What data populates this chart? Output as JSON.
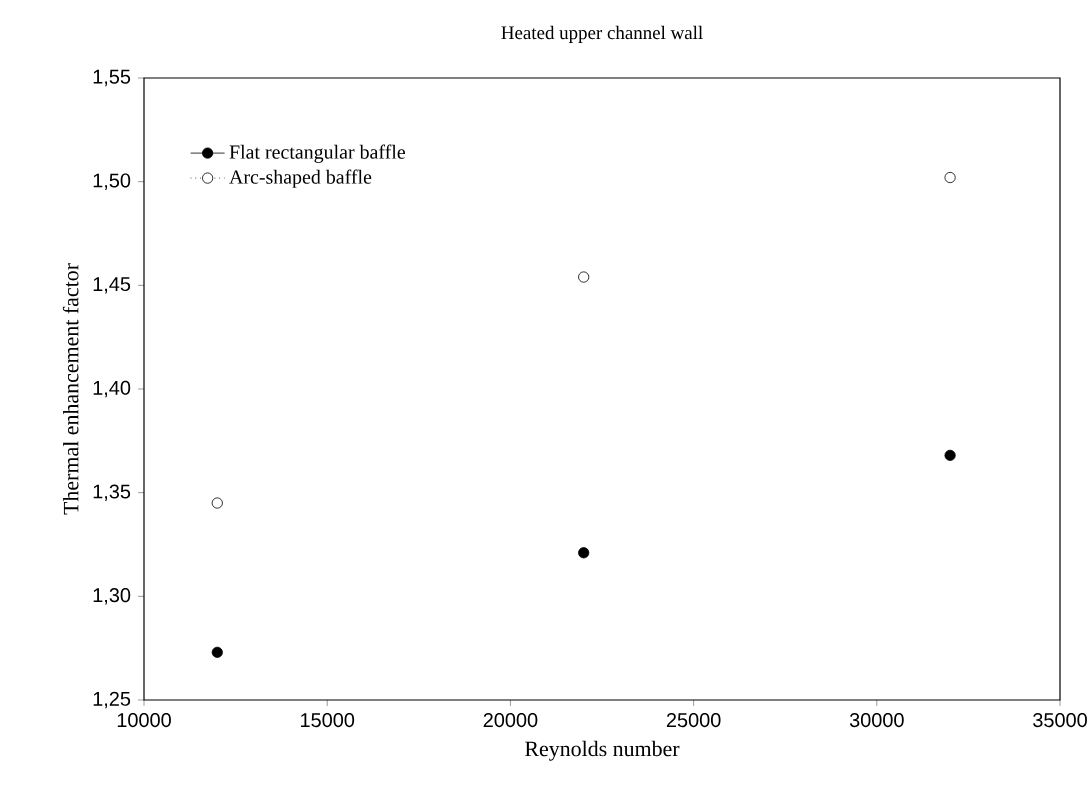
{
  "chart_data": {
    "type": "scatter",
    "title": "Heated upper channel wall",
    "xlabel": "Reynolds number",
    "ylabel": "Thermal enhancement factor",
    "x": [
      12000,
      22000,
      32000
    ],
    "series": [
      {
        "name": "Flat rectangular baffle",
        "color": "#000000",
        "line_style": "solid",
        "values": [
          1.273,
          1.321,
          1.368
        ]
      },
      {
        "name": "Arc-shaped baffle",
        "color": "#ffffff",
        "line_style": "dotted",
        "values": [
          1.345,
          1.454,
          1.502
        ]
      }
    ],
    "xlim": [
      10000,
      35000
    ],
    "xticks": [
      10000,
      15000,
      20000,
      25000,
      30000,
      35000
    ],
    "ylim": [
      1.25,
      1.55
    ],
    "yticks": [
      {
        "value": 1.25,
        "label": "1,25"
      },
      {
        "value": 1.3,
        "label": "1,30"
      },
      {
        "value": 1.35,
        "label": "1,35"
      },
      {
        "value": 1.4,
        "label": "1,40"
      },
      {
        "value": 1.45,
        "label": "1,45"
      },
      {
        "value": 1.5,
        "label": "1,50"
      },
      {
        "value": 1.55,
        "label": "1,55"
      }
    ],
    "marker": "circle",
    "legend": "top left",
    "grid": false
  }
}
